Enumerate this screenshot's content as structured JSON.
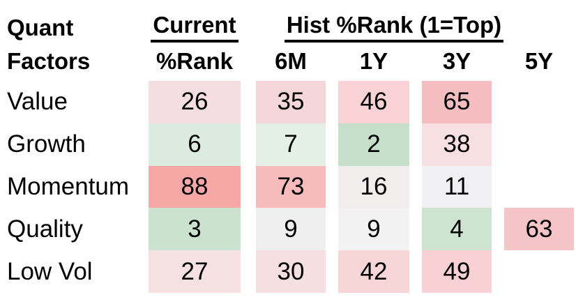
{
  "headers": {
    "title_line1": "Quant",
    "title_line2": "Factors",
    "group_current": "Current",
    "group_hist": "Hist %Rank (1=Top)",
    "col1": "%Rank",
    "col2": "6M",
    "col3": "1Y",
    "col4": "3Y",
    "col5": "5Y"
  },
  "rows": [
    {
      "label": "Value",
      "cells": [
        {
          "v": "26",
          "bg": "#f4dee1"
        },
        {
          "v": "35",
          "bg": "#f6d7d9"
        },
        {
          "v": "46",
          "bg": "#f8d2d5"
        },
        {
          "v": "65",
          "bg": "#f4bec1"
        }
      ]
    },
    {
      "label": "Growth",
      "cells": [
        {
          "v": "6",
          "bg": "#dcebdf"
        },
        {
          "v": "7",
          "bg": "#e4efe5"
        },
        {
          "v": "2",
          "bg": "#c5dfca"
        },
        {
          "v": "38",
          "bg": "#f8dfe1"
        }
      ]
    },
    {
      "label": "Momentum",
      "cells": [
        {
          "v": "88",
          "bg": "#f6a8a7"
        },
        {
          "v": "73",
          "bg": "#f7bbbc"
        },
        {
          "v": "16",
          "bg": "#f2eeee"
        },
        {
          "v": "11",
          "bg": "#f0f0f2"
        }
      ]
    },
    {
      "label": "Quality",
      "cells": [
        {
          "v": "3",
          "bg": "#cbe2cf"
        },
        {
          "v": "9",
          "bg": "#f0efef"
        },
        {
          "v": "9",
          "bg": "#f2f2f2"
        },
        {
          "v": "4",
          "bg": "#cfe3d1"
        },
        {
          "v": "63",
          "bg": "#f5c4c6"
        }
      ]
    },
    {
      "label": "Low Vol",
      "cells": [
        {
          "v": "27",
          "bg": "#f6e1e2"
        },
        {
          "v": "30",
          "bg": "#f6dfe0"
        },
        {
          "v": "42",
          "bg": "#f8d6d8"
        },
        {
          "v": "49",
          "bg": "#f7d1d3"
        }
      ]
    }
  ],
  "colors": {
    "text": "#000000",
    "background": "#ffffff",
    "heat_low_green": "#c5dfca",
    "heat_high_red": "#f6a8a7"
  },
  "chart_data": {
    "type": "heatmap",
    "title": "Quant Factors — Current and Historical %Rank (1=Top)",
    "row_header": "Quant Factors",
    "column_groups": [
      "Current",
      "Hist %Rank (1=Top)"
    ],
    "columns": [
      "%Rank",
      "6M",
      "1Y",
      "3Y",
      "5Y"
    ],
    "rows": [
      "Value",
      "Growth",
      "Momentum",
      "Quality",
      "Low Vol"
    ],
    "values": [
      [
        26,
        35,
        46,
        65,
        null
      ],
      [
        6,
        7,
        2,
        38,
        null
      ],
      [
        88,
        73,
        16,
        11,
        null
      ],
      [
        3,
        9,
        9,
        4,
        63
      ],
      [
        27,
        30,
        42,
        49,
        null
      ]
    ],
    "scale": "1 = top percentile (green = low rank/good, red = high rank/poor), range 1-100",
    "legend_position": "none",
    "grid": false
  }
}
